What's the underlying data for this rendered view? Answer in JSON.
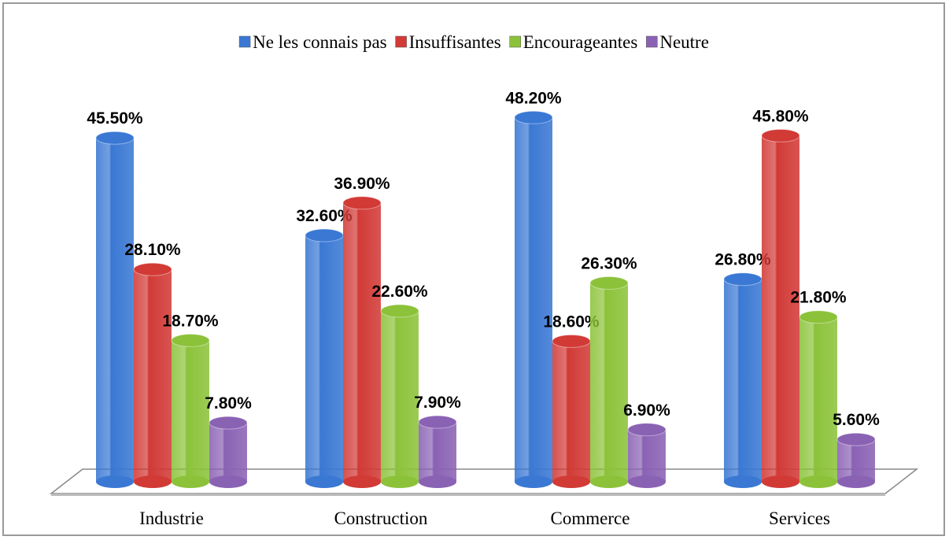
{
  "chart_data": {
    "type": "bar",
    "categories": [
      "Industrie",
      "Construction",
      "Commerce",
      "Services"
    ],
    "series": [
      {
        "name": "Ne les connais pas",
        "color": "#3a78d4",
        "values": [
          45.5,
          32.6,
          48.2,
          26.8
        ],
        "value_labels": [
          "45.50%",
          "32.60%",
          "48.20%",
          "26.80%"
        ]
      },
      {
        "name": "Insuffisantes",
        "color": "#d23a36",
        "values": [
          28.1,
          36.9,
          18.6,
          45.8
        ],
        "value_labels": [
          "28.10%",
          "36.90%",
          "18.60%",
          "45.80%"
        ]
      },
      {
        "name": "Encourageantes",
        "color": "#8cc23a",
        "values": [
          18.7,
          22.6,
          26.3,
          21.8
        ],
        "value_labels": [
          "18.70%",
          "22.60%",
          "26.30%",
          "21.80%"
        ]
      },
      {
        "name": "Neutre",
        "color": "#8a62b4",
        "values": [
          7.8,
          7.9,
          6.9,
          5.6
        ],
        "value_labels": [
          "7.80%",
          "7.90%",
          "6.90%",
          "5.60%"
        ]
      }
    ],
    "legend": "top"
  }
}
